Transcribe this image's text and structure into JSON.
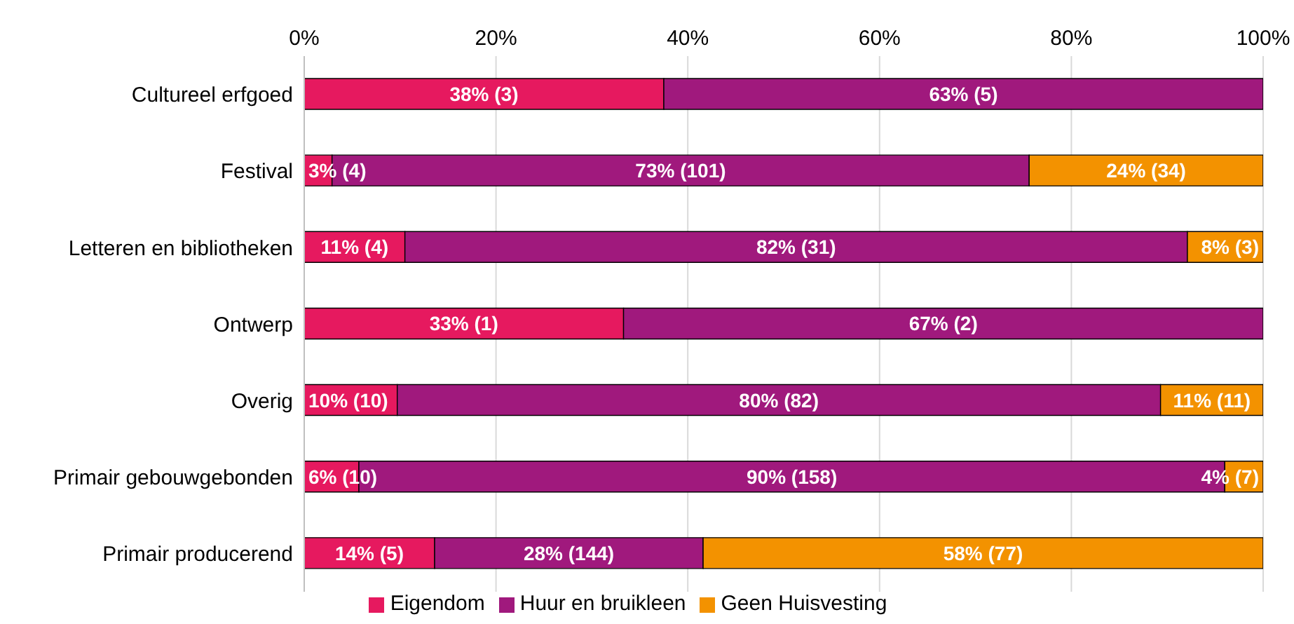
{
  "chart_data": {
    "type": "bar",
    "orientation": "horizontal",
    "stacked": true,
    "categories": [
      "Cultureel erfgoed",
      "Festival",
      "Letteren en bibliotheken",
      "Ontwerp",
      "Overig",
      "Primair gebouwgebonden",
      "Primair producerend"
    ],
    "series": [
      {
        "name": "Eigendom",
        "color": "#e6195f",
        "values": [
          37.5,
          2.9,
          10.5,
          33.3,
          9.7,
          5.7,
          13.6
        ],
        "value_labels": [
          "38% (3)",
          "3% (4)",
          "11% (4)",
          "33% (1)",
          "10% (10)",
          "6% (10)",
          "14% (5)"
        ]
      },
      {
        "name": "Huur en bruikleen",
        "color": "#a0197d",
        "values": [
          62.5,
          72.7,
          81.6,
          66.7,
          79.6,
          90.3,
          28.0
        ],
        "value_labels": [
          "63% (5)",
          "73% (101)",
          "82% (31)",
          "67% (2)",
          "80% (82)",
          "90% (158)",
          "28% (144)"
        ]
      },
      {
        "name": "Geen Huisvesting",
        "color": "#f39200",
        "values": [
          null,
          24.4,
          7.9,
          null,
          10.7,
          4.0,
          58.4
        ],
        "value_labels": [
          null,
          "24% (34)",
          "8% (3)",
          null,
          "11% (11)",
          "4% (7)",
          "58% (77)"
        ]
      }
    ],
    "xlim": [
      0,
      100
    ],
    "xticks": [
      {
        "value": 0,
        "label": "0%"
      },
      {
        "value": 20,
        "label": "20%"
      },
      {
        "value": 40,
        "label": "40%"
      },
      {
        "value": 60,
        "label": "60%"
      },
      {
        "value": 80,
        "label": "80%"
      },
      {
        "value": 100,
        "label": "100%"
      }
    ],
    "grid": "x",
    "legend": "bottom"
  }
}
